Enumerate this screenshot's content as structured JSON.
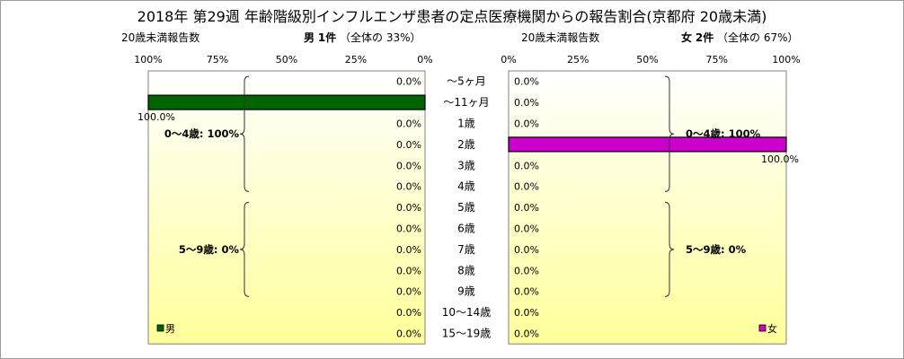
{
  "title": "2018年 第29週 年齢階級別インフルエンザ患者の定点医療機関からの報告割合(京都府 20歳未満)",
  "left_header": {
    "count_label": "20歳未満報告数",
    "sex": "男",
    "count": "1件",
    "share_prefix": "（全体の",
    "share": "33%）"
  },
  "right_header": {
    "count_label": "20歳未満報告数",
    "sex": "女",
    "count": "2件",
    "share_prefix": "（全体の",
    "share": "67%）"
  },
  "chart_data": [
    {
      "type": "bar",
      "orientation": "horizontal",
      "direction": "right-to-left",
      "series": [
        {
          "name": "男",
          "color": "#006400",
          "values": [
            0,
            100,
            0,
            0,
            0,
            0,
            0,
            0,
            0,
            0,
            0,
            0,
            0
          ]
        }
      ],
      "categories": [
        "〜5ヶ月",
        "〜11ヶ月",
        "1歳",
        "2歳",
        "3歳",
        "4歳",
        "5歳",
        "6歳",
        "7歳",
        "8歳",
        "9歳",
        "10〜14歳",
        "15〜19歳"
      ],
      "value_labels": [
        "0.0%",
        "100.0%",
        "0.0%",
        "0.0%",
        "0.0%",
        "0.0%",
        "0.0%",
        "0.0%",
        "0.0%",
        "0.0%",
        "0.0%",
        "0.0%",
        "0.0%"
      ],
      "xlim": [
        0,
        100
      ],
      "xticks": [
        "100%",
        "75%",
        "50%",
        "25%",
        "0%"
      ],
      "groups": [
        {
          "label": "0〜4歳: 100%",
          "from": 0,
          "to": 5
        },
        {
          "label": "5〜9歳: 0%",
          "from": 6,
          "to": 10
        }
      ],
      "legend": "bottom-left"
    },
    {
      "type": "bar",
      "orientation": "horizontal",
      "direction": "left-to-right",
      "series": [
        {
          "name": "女",
          "color": "#cc00cc",
          "values": [
            0,
            0,
            0,
            100,
            0,
            0,
            0,
            0,
            0,
            0,
            0,
            0,
            0
          ]
        }
      ],
      "categories": [
        "〜5ヶ月",
        "〜11ヶ月",
        "1歳",
        "2歳",
        "3歳",
        "4歳",
        "5歳",
        "6歳",
        "7歳",
        "8歳",
        "9歳",
        "10〜14歳",
        "15〜19歳"
      ],
      "value_labels": [
        "0.0%",
        "0.0%",
        "0.0%",
        "100.0%",
        "0.0%",
        "0.0%",
        "0.0%",
        "0.0%",
        "0.0%",
        "0.0%",
        "0.0%",
        "0.0%",
        "0.0%"
      ],
      "xlim": [
        0,
        100
      ],
      "xticks": [
        "0%",
        "25%",
        "50%",
        "75%",
        "100%"
      ],
      "groups": [
        {
          "label": "0〜4歳: 100%",
          "from": 0,
          "to": 5
        },
        {
          "label": "5〜9歳: 0%",
          "from": 6,
          "to": 10
        }
      ],
      "legend": "bottom-right"
    }
  ]
}
